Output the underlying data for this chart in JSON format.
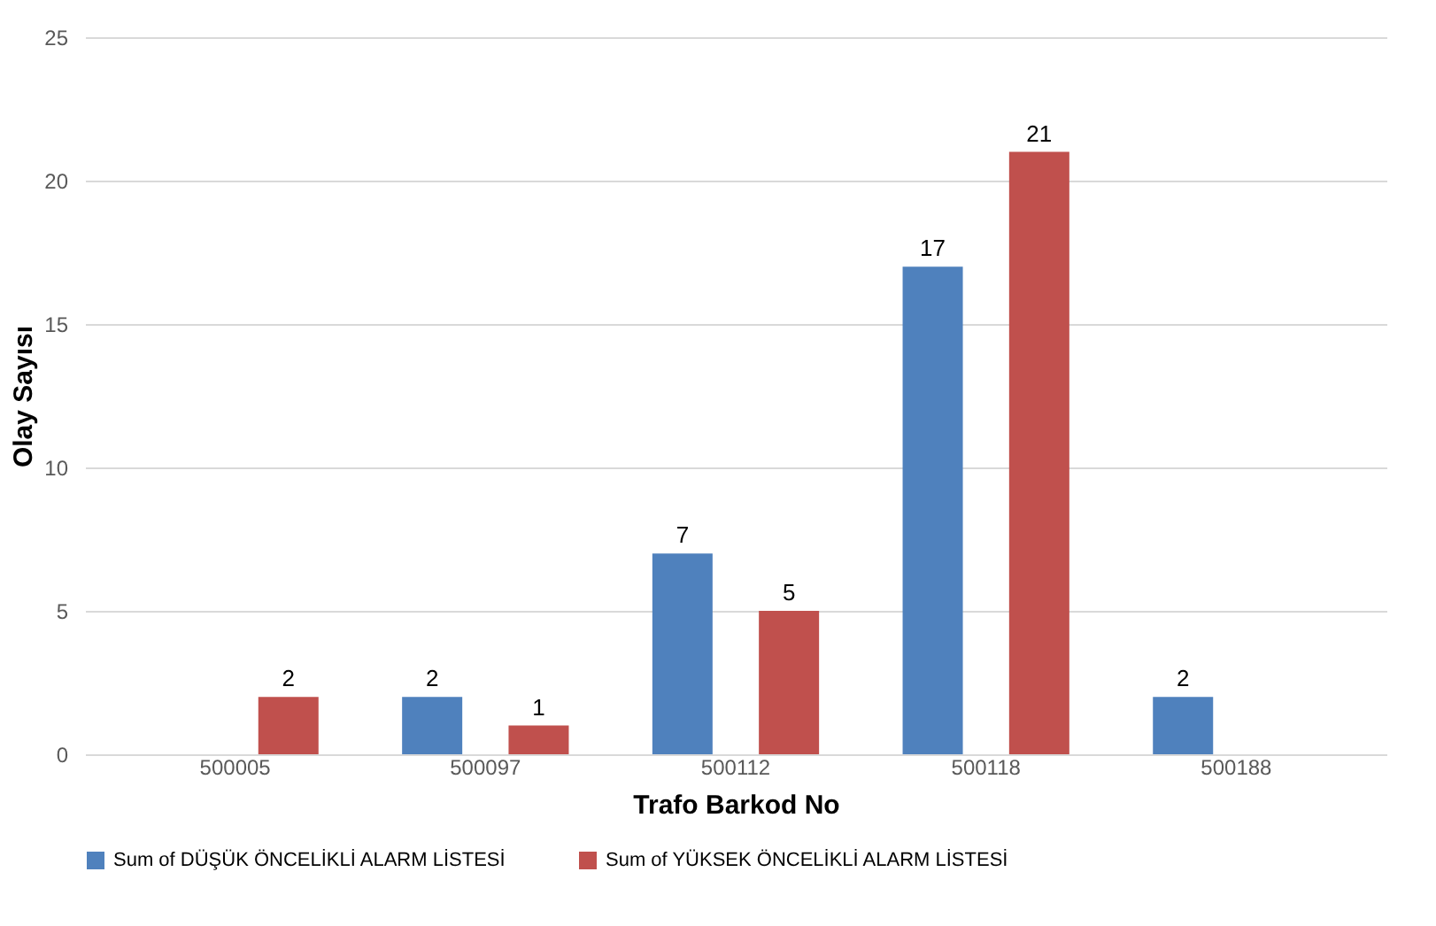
{
  "chart_data": {
    "type": "bar",
    "xlabel": "Trafo Barkod No",
    "ylabel": "Olay Sayısı",
    "categories": [
      "500005",
      "500097",
      "500112",
      "500118",
      "500188"
    ],
    "series": [
      {
        "name": "Sum of DÜŞÜK ÖNCELİKLİ ALARM LİSTESİ",
        "color": "#4f81bd",
        "values": [
          null,
          2,
          7,
          17,
          2
        ]
      },
      {
        "name": "Sum of YÜKSEK ÖNCELİKLİ ALARM LİSTESİ",
        "color": "#c0504d",
        "values": [
          2,
          1,
          5,
          21,
          null
        ]
      }
    ],
    "ylim": [
      0,
      25
    ],
    "yticks": [
      0,
      5,
      10,
      15,
      20,
      25
    ],
    "grid": "y",
    "legend": "bottom",
    "data_labels": true
  }
}
